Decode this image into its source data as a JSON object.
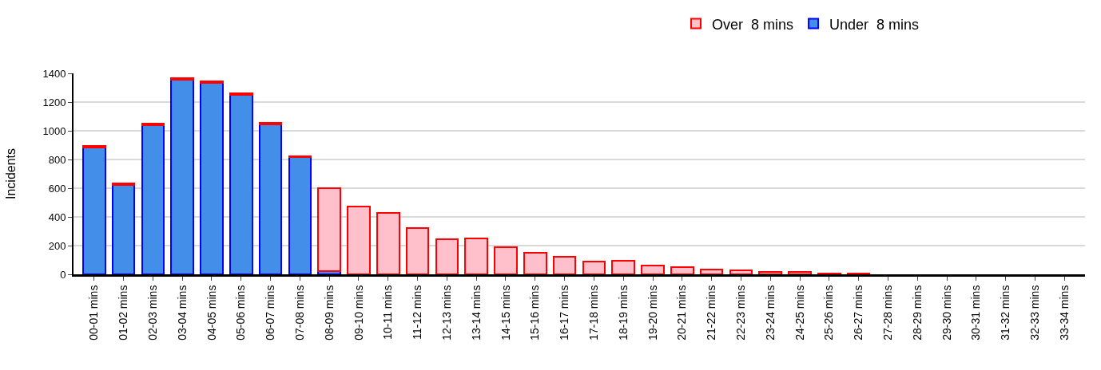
{
  "chart_data": {
    "type": "bar",
    "stacked": true,
    "ylabel": "Incidents",
    "categories": [
      "00-01 mins",
      "01-02 mins",
      "02-03 mins",
      "03-04 mins",
      "04-05 mins",
      "05-06 mins",
      "06-07 mins",
      "07-08 mins",
      "08-09 mins",
      "09-10 mins",
      "10-11 mins",
      "11-12 mins",
      "12-13 mins",
      "13-14 mins",
      "14-15 mins",
      "15-16 mins",
      "16-17 mins",
      "17-18 mins",
      "18-19 mins",
      "19-20 mins",
      "20-21 mins",
      "21-22 mins",
      "22-23 mins",
      "23-24 mins",
      "24-25 mins",
      "25-26 mins",
      "26-27 mins",
      "27-28 mins",
      "28-29 mins",
      "29-30 mins",
      "30-31 mins",
      "31-32 mins",
      "32-33 mins",
      "33-34 mins"
    ],
    "series": [
      {
        "name": "Under  8 mins",
        "color": "#428ee8",
        "values": [
          885,
          625,
          1040,
          1355,
          1335,
          1250,
          1045,
          815,
          20,
          null,
          null,
          null,
          null,
          null,
          null,
          null,
          null,
          null,
          null,
          null,
          null,
          null,
          null,
          null,
          null,
          null,
          null,
          null,
          null,
          null,
          null,
          null,
          null,
          null
        ]
      },
      {
        "name": "Over  8 mins",
        "color": "#ffc0cb",
        "values": [
          10,
          10,
          10,
          10,
          10,
          10,
          10,
          10,
          580,
          470,
          430,
          320,
          245,
          250,
          190,
          150,
          120,
          90,
          95,
          60,
          50,
          35,
          30,
          18,
          15,
          8,
          6,
          null,
          null,
          null,
          null,
          null,
          null,
          null
        ]
      }
    ],
    "ylim": [
      0,
      1400
    ],
    "yticks": [
      0,
      200,
      400,
      600,
      800,
      1000,
      1200,
      1400
    ],
    "grid": "y",
    "legend": "top"
  }
}
